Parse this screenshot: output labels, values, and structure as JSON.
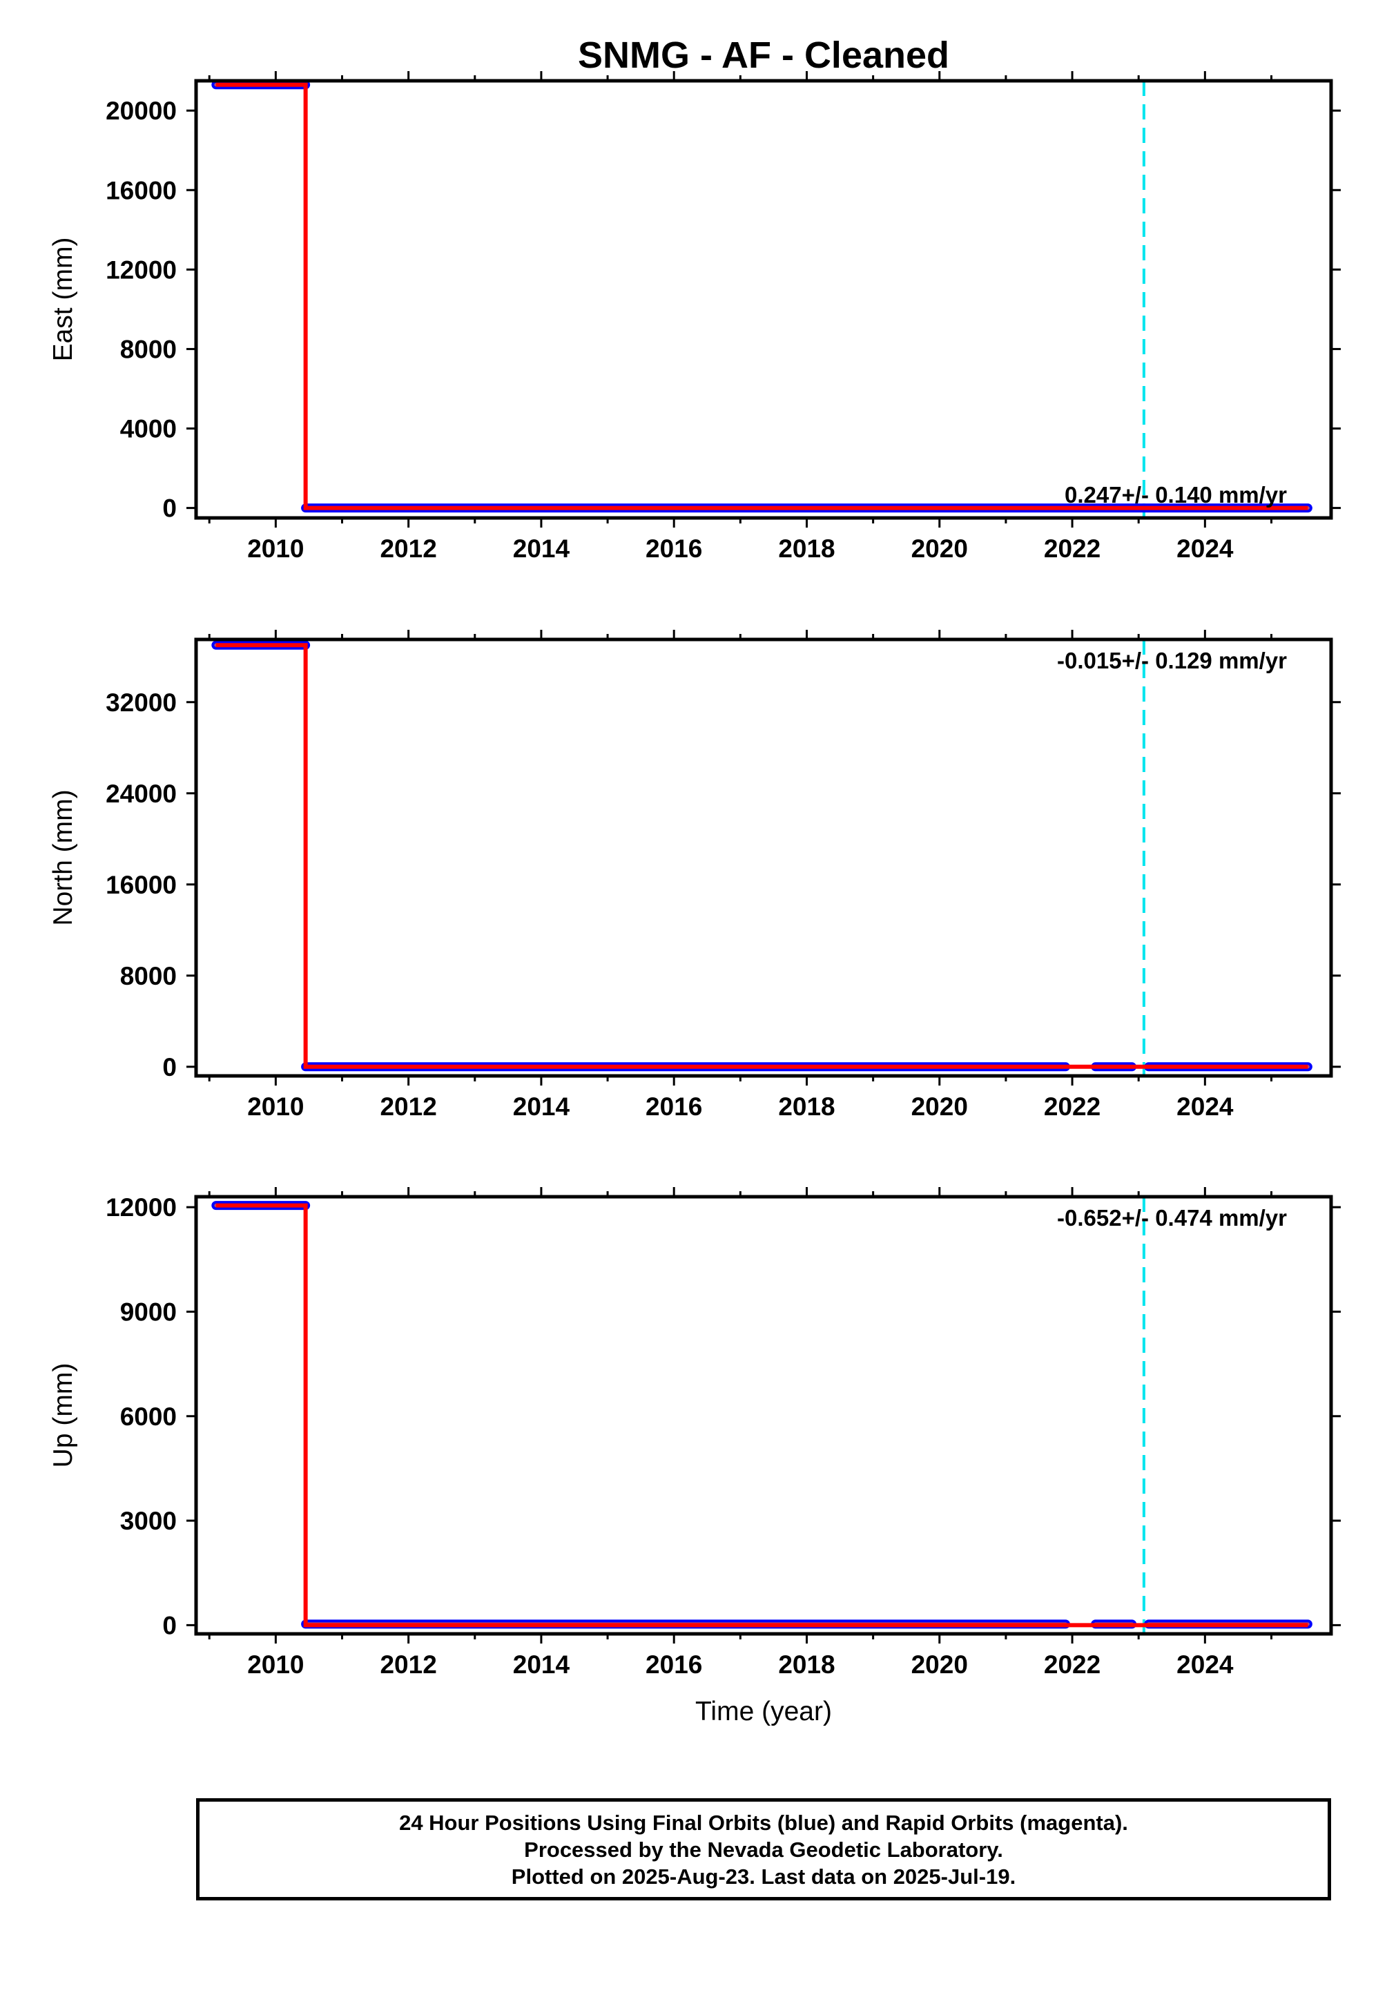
{
  "title": "SNMG  - AF - Cleaned",
  "footer": {
    "line1": "24 Hour Positions Using Final Orbits (blue) and Rapid Orbits (magenta).",
    "line2": "Processed by the Nevada Geodetic Laboratory.",
    "line3": "Plotted on 2025-Aug-23. Last data on 2025-Jul-19."
  },
  "colors": {
    "final_orbits": "#0000ff",
    "fit_line": "#ff0000",
    "data_fill": "#b84a6e",
    "reference_line": "#00e5ee",
    "frame": "#000000"
  },
  "chart_data": [
    {
      "type": "scatter",
      "ylabel": "East (mm)",
      "xlabel": "",
      "xlim": [
        2008.8,
        2025.9
      ],
      "ylim": [
        -500,
        21500
      ],
      "x_ticks": [
        2010,
        2012,
        2014,
        2016,
        2018,
        2020,
        2022,
        2024
      ],
      "y_ticks": [
        0,
        4000,
        8000,
        12000,
        16000,
        20000
      ],
      "rate_text": "0.247+/- 0.140 mm/yr",
      "reference_line_x": 2023.08,
      "segments": [
        {
          "x": [
            2009.1,
            2010.45
          ],
          "y": [
            21300,
            21300
          ]
        },
        {
          "x": [
            2010.45,
            2025.55
          ],
          "y": [
            0,
            0
          ]
        }
      ],
      "fit": {
        "x": [
          2009.1,
          2010.45,
          2010.45,
          2025.55
        ],
        "y": [
          21300,
          21300,
          0,
          0
        ]
      }
    },
    {
      "type": "scatter",
      "ylabel": "North (mm)",
      "xlabel": "",
      "xlim": [
        2008.8,
        2025.9
      ],
      "ylim": [
        -800,
        37500
      ],
      "x_ticks": [
        2010,
        2012,
        2014,
        2016,
        2018,
        2020,
        2022,
        2024
      ],
      "y_ticks": [
        0,
        8000,
        16000,
        24000,
        32000
      ],
      "rate_text": "-0.015+/- 0.129 mm/yr",
      "reference_line_x": 2023.08,
      "segments": [
        {
          "x": [
            2009.1,
            2010.45
          ],
          "y": [
            37000,
            37000
          ]
        },
        {
          "x": [
            2010.45,
            2021.9
          ],
          "y": [
            0,
            0
          ]
        },
        {
          "x": [
            2022.35,
            2022.9
          ],
          "y": [
            0,
            0
          ]
        },
        {
          "x": [
            2023.15,
            2025.55
          ],
          "y": [
            0,
            0
          ]
        }
      ],
      "fit": {
        "x": [
          2009.1,
          2010.45,
          2010.45,
          2025.55
        ],
        "y": [
          37000,
          37000,
          0,
          0
        ]
      }
    },
    {
      "type": "scatter",
      "ylabel": "Up (mm)",
      "xlabel": "Time (year)",
      "xlim": [
        2008.8,
        2025.9
      ],
      "ylim": [
        -250,
        12300
      ],
      "x_ticks": [
        2010,
        2012,
        2014,
        2016,
        2018,
        2020,
        2022,
        2024
      ],
      "y_ticks": [
        0,
        3000,
        6000,
        9000,
        12000
      ],
      "rate_text": "-0.652+/- 0.474 mm/yr",
      "reference_line_x": 2023.08,
      "segments": [
        {
          "x": [
            2009.1,
            2010.45
          ],
          "y": [
            12050,
            12050
          ]
        },
        {
          "x": [
            2010.45,
            2021.9
          ],
          "y": [
            30,
            30
          ]
        },
        {
          "x": [
            2022.35,
            2022.9
          ],
          "y": [
            30,
            30
          ]
        },
        {
          "x": [
            2023.15,
            2025.55
          ],
          "y": [
            30,
            30
          ]
        }
      ],
      "fit": {
        "x": [
          2009.1,
          2010.45,
          2010.45,
          2025.55
        ],
        "y": [
          12050,
          12050,
          0,
          0
        ]
      }
    }
  ]
}
